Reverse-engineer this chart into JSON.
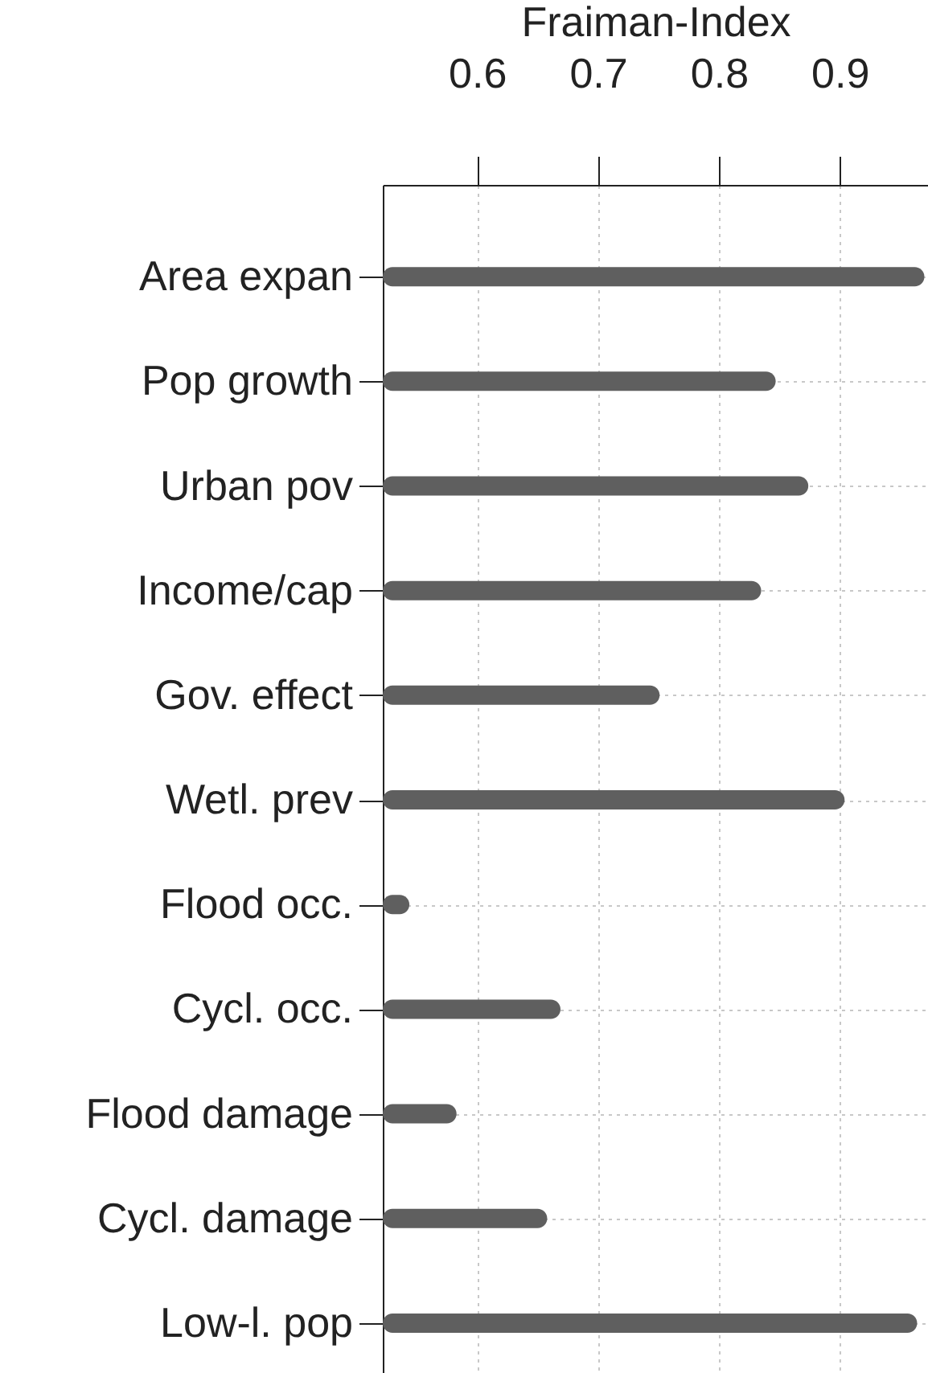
{
  "chart_data": {
    "type": "bar",
    "orientation": "horizontal",
    "xlabel": "Fraiman-Index",
    "categories": [
      "Area expan",
      "Pop growth",
      "Urban pov",
      "Income/cap",
      "Gov. effect",
      "Wetl. prev",
      "Flood occ.",
      "Cycl. occ.",
      "Flood damage",
      "Cycl. damage",
      "Low-l. pop"
    ],
    "values": [
      0.97,
      0.847,
      0.874,
      0.835,
      0.751,
      0.904,
      0.544,
      0.669,
      0.583,
      0.658,
      0.964
    ],
    "color": "#5f5f5f",
    "xlim": [
      0.522,
      0.973
    ],
    "xticks": [
      0.6,
      0.7,
      0.8,
      0.9
    ],
    "grid": true
  }
}
